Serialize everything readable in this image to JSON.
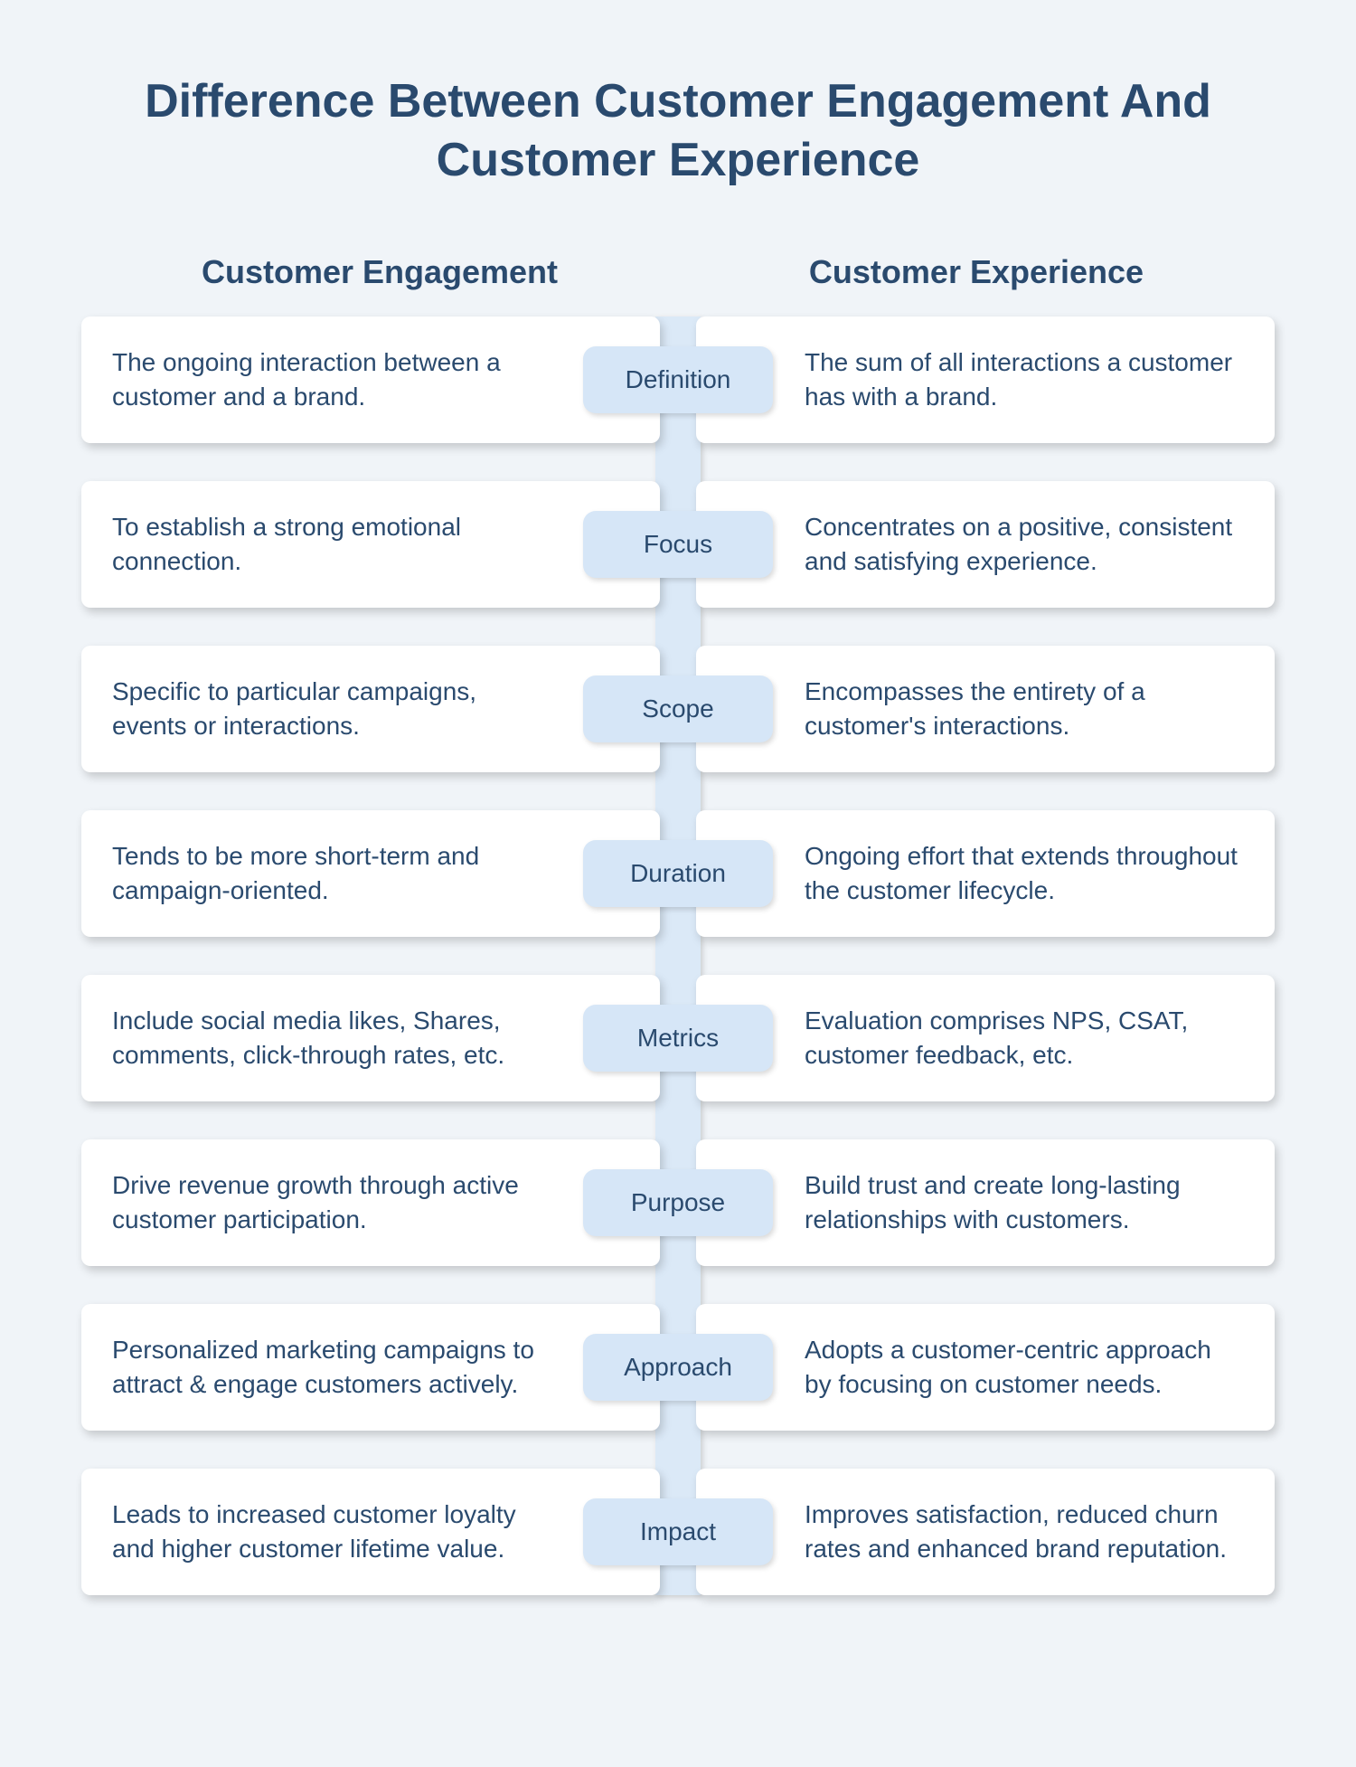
{
  "title": "Difference Between Customer Engagement And Customer Experience",
  "title_fontsize": 52,
  "columns": {
    "left": "Customer Engagement",
    "right": "Customer Experience",
    "header_fontsize": 36
  },
  "layout": {
    "spine_width": 50,
    "spine_color": "#dbe9f7",
    "pill_bg": "#d6e6f7",
    "pill_width": 210,
    "pill_height": 74,
    "pill_fontsize": 28,
    "card_bg": "#ffffff",
    "card_radius": 10,
    "card_fontsize": 28,
    "card_min_height": 140,
    "text_color": "#2a4a6e",
    "page_bg": "#f0f4f8",
    "row_gap": 42
  },
  "rows": [
    {
      "label": "Definition",
      "left": "The ongoing interaction between a customer and a brand.",
      "right": "The sum of all interactions a customer has with a brand."
    },
    {
      "label": "Focus",
      "left": "To establish a strong emotional connection.",
      "right": "Concentrates on a positive, consistent and satisfying experience."
    },
    {
      "label": "Scope",
      "left": "Specific to particular campaigns, events or interactions.",
      "right": "Encompasses the entirety of a customer's interactions."
    },
    {
      "label": "Duration",
      "left": "Tends to be more short-term and campaign-oriented.",
      "right": "Ongoing effort that extends throughout the customer lifecycle."
    },
    {
      "label": "Metrics",
      "left": "Include social media likes, Shares, comments, click-through rates, etc.",
      "right": "Evaluation comprises NPS, CSAT, customer feedback, etc."
    },
    {
      "label": "Purpose",
      "left": "Drive revenue growth through active customer participation.",
      "right": "Build trust and create long-lasting relationships with customers."
    },
    {
      "label": "Approach",
      "left": "Personalized marketing campaigns to attract & engage customers actively.",
      "right": "Adopts a customer-centric approach by focusing on customer needs."
    },
    {
      "label": "Impact",
      "left": "Leads to increased customer loyalty and higher customer lifetime value.",
      "right": "Improves satisfaction, reduced churn rates and enhanced brand reputation."
    }
  ]
}
